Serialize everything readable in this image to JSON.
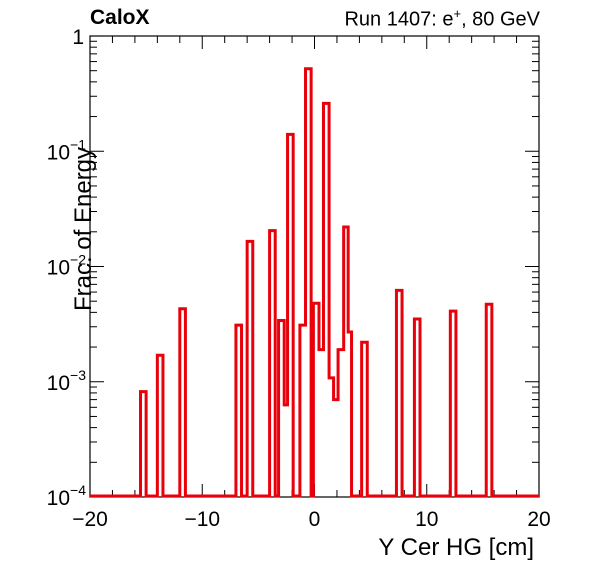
{
  "header": {
    "brand": "CaloX",
    "run_label": "Run 1407: e",
    "run_sup": "+",
    "run_rest": ", 80 GeV"
  },
  "chart_data": {
    "type": "histogram-step",
    "xlabel": "Y Cer HG [cm]",
    "ylabel": "Frac. of Energy",
    "xlim": [
      -20,
      20
    ],
    "ylim": [
      0.0001,
      1
    ],
    "yscale": "log",
    "grid": false,
    "line_color": "#e8000b",
    "x_ticks": [
      -20,
      -10,
      0,
      10,
      20
    ],
    "y_ticks": [
      {
        "value": 1,
        "label": "1"
      },
      {
        "value": 0.1,
        "label": "10",
        "exp": "−1"
      },
      {
        "value": 0.01,
        "label": "10",
        "exp": "−2"
      },
      {
        "value": 0.001,
        "label": "10",
        "exp": "−3"
      },
      {
        "value": 0.0001,
        "label": "10",
        "exp": "−4"
      }
    ],
    "bins": [
      {
        "x0": -15.5,
        "x1": -15.0,
        "y": 0.00082
      },
      {
        "x0": -14.0,
        "x1": -13.5,
        "y": 0.0017
      },
      {
        "x0": -12.0,
        "x1": -11.5,
        "y": 0.0043
      },
      {
        "x0": -7.0,
        "x1": -6.5,
        "y": 0.0031
      },
      {
        "x0": -6.0,
        "x1": -5.5,
        "y": 0.0165
      },
      {
        "x0": -4.0,
        "x1": -3.5,
        "y": 0.0205
      },
      {
        "x0": -3.2,
        "x1": -2.7,
        "y": 0.0034
      },
      {
        "x0": -2.7,
        "x1": -2.4,
        "y": 0.00063
      },
      {
        "x0": -2.4,
        "x1": -1.9,
        "y": 0.14
      },
      {
        "x0": -1.3,
        "x1": -0.8,
        "y": 0.0031
      },
      {
        "x0": -0.8,
        "x1": -0.3,
        "y": 0.52
      },
      {
        "x0": -0.1,
        "x1": 0.4,
        "y": 0.0048
      },
      {
        "x0": 0.4,
        "x1": 0.8,
        "y": 0.0019
      },
      {
        "x0": 0.8,
        "x1": 1.3,
        "y": 0.26
      },
      {
        "x0": 1.3,
        "x1": 1.7,
        "y": 0.00108
      },
      {
        "x0": 1.7,
        "x1": 2.1,
        "y": 0.0007
      },
      {
        "x0": 2.1,
        "x1": 2.6,
        "y": 0.0019
      },
      {
        "x0": 2.6,
        "x1": 3.0,
        "y": 0.022
      },
      {
        "x0": 3.0,
        "x1": 3.3,
        "y": 0.0027
      },
      {
        "x0": 4.2,
        "x1": 4.7,
        "y": 0.0022
      },
      {
        "x0": 7.3,
        "x1": 7.8,
        "y": 0.0062
      },
      {
        "x0": 8.9,
        "x1": 9.4,
        "y": 0.0035
      },
      {
        "x0": 12.1,
        "x1": 12.6,
        "y": 0.0041
      },
      {
        "x0": 15.3,
        "x1": 15.8,
        "y": 0.0047
      }
    ]
  }
}
